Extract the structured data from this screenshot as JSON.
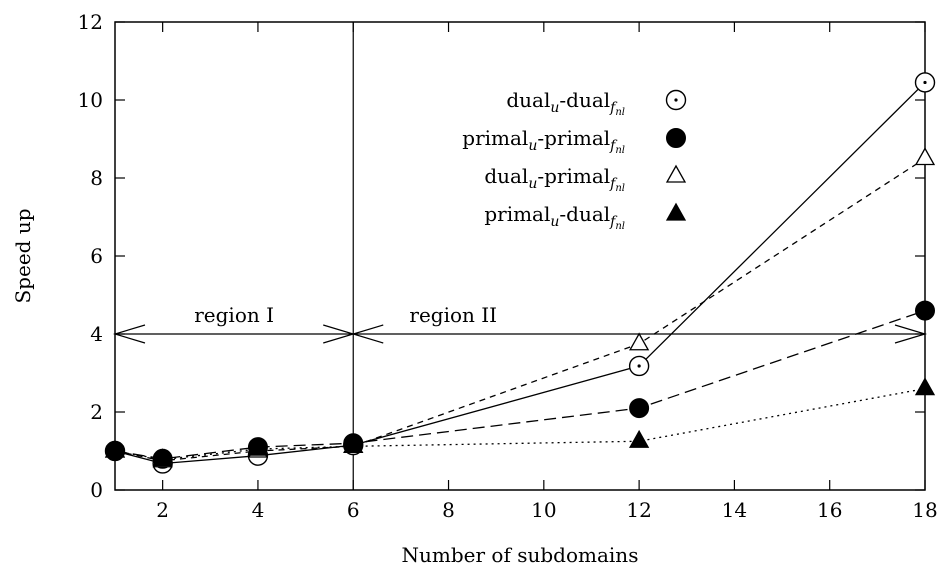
{
  "chart_data": {
    "type": "line",
    "xlabel": "Number of subdomains",
    "ylabel": "Speed up",
    "xlim": [
      1,
      18
    ],
    "ylim": [
      0,
      12
    ],
    "x_ticks": [
      2,
      4,
      6,
      8,
      10,
      12,
      14,
      16,
      18
    ],
    "y_ticks": [
      0,
      2,
      4,
      6,
      8,
      10,
      12
    ],
    "grid": false,
    "legend_position": "top-right",
    "series": [
      {
        "name": "dual_u-dual_fnl",
        "label_main": "dual",
        "label_sub1": "u",
        "label_mid": "-dual",
        "label_sub2": "f",
        "label_subsub": "nl",
        "marker": "circle-dot",
        "line_style": "solid",
        "x": [
          1,
          2,
          4,
          6,
          12,
          18
        ],
        "y": [
          1.0,
          0.68,
          0.88,
          1.15,
          3.18,
          10.45
        ]
      },
      {
        "name": "primal_u-primal_fnl",
        "label_main": "primal",
        "label_sub1": "u",
        "label_mid": "-primal",
        "label_sub2": "f",
        "label_subsub": "nl",
        "marker": "filled-circle",
        "line_style": "dashed",
        "x": [
          1,
          2,
          4,
          6,
          12,
          18
        ],
        "y": [
          1.0,
          0.8,
          1.1,
          1.2,
          2.1,
          4.6
        ]
      },
      {
        "name": "dual_u-primal_fnl",
        "label_main": "dual",
        "label_sub1": "u",
        "label_mid": "-primal",
        "label_sub2": "f",
        "label_subsub": "nl",
        "marker": "open-triangle",
        "line_style": "short-dashed",
        "x": [
          1,
          2,
          4,
          6,
          12,
          18
        ],
        "y": [
          1.0,
          0.75,
          1.0,
          1.12,
          3.75,
          8.5
        ]
      },
      {
        "name": "primal_u-dual_fnl",
        "label_main": "primal",
        "label_sub1": "u",
        "label_mid": "-dual",
        "label_sub2": "f",
        "label_subsub": "nl",
        "marker": "filled-triangle",
        "line_style": "dotted",
        "x": [
          1,
          2,
          4,
          6,
          12,
          18
        ],
        "y": [
          1.0,
          0.78,
          1.05,
          1.12,
          1.25,
          2.6
        ]
      }
    ],
    "annotations": {
      "divider_x": 6,
      "arrow_y": 4,
      "region_1": {
        "text": "region I",
        "x_from": 1,
        "x_to": 6
      },
      "region_2": {
        "text": "region II",
        "x_from": 6,
        "x_to": 18
      }
    }
  }
}
